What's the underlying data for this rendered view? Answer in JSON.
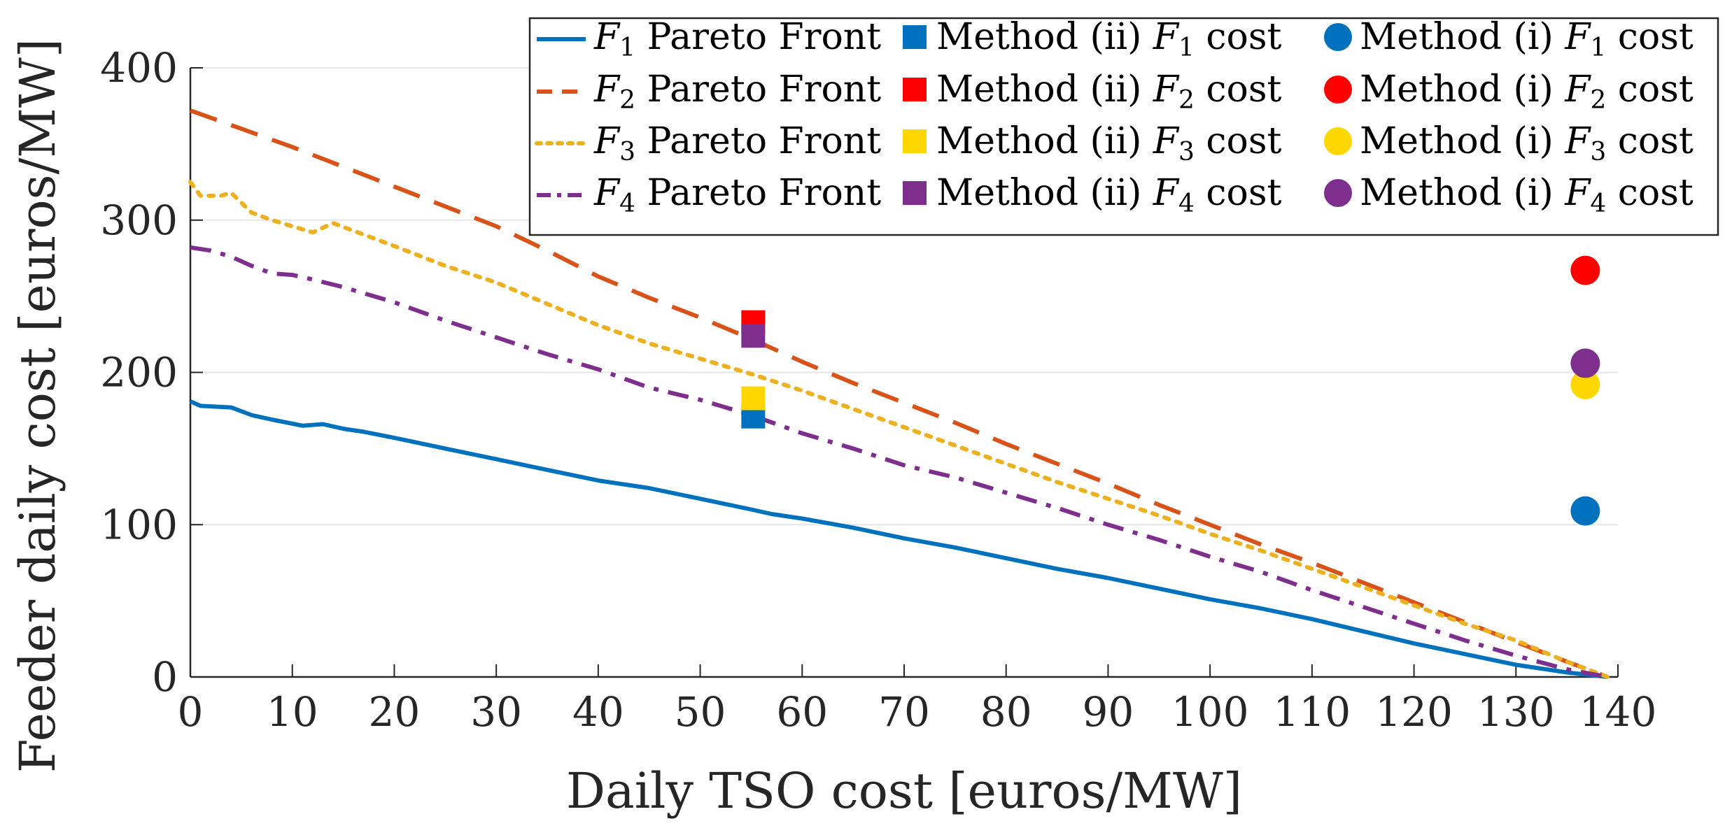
{
  "chart_data": {
    "type": "line",
    "title": "",
    "xlabel": "Daily TSO cost [euros/MW]",
    "ylabel": "Feeder daily cost [euros/MW]",
    "xlim": [
      0,
      140
    ],
    "ylim": [
      0,
      400
    ],
    "xticks": [
      0,
      10,
      20,
      30,
      40,
      50,
      60,
      70,
      80,
      90,
      100,
      110,
      120,
      130,
      140
    ],
    "yticks": [
      0,
      100,
      200,
      300,
      400
    ],
    "xtick_labels": [
      "0",
      "10",
      "20",
      "30",
      "40",
      "50",
      "60",
      "70",
      "80",
      "90",
      "100",
      "110",
      "120",
      "130",
      "140"
    ],
    "ytick_labels": [
      "0",
      "100",
      "200",
      "300",
      "400"
    ],
    "grid": true,
    "legend_position": "top-right",
    "series": [
      {
        "name": "F1 Pareto Front",
        "label_var": "F",
        "label_sub": "1",
        "label_rest": " Pareto Front",
        "style": "solid",
        "color": "#0072BD",
        "x": [
          0,
          1,
          4,
          6,
          8,
          11,
          13,
          15,
          17,
          20,
          25,
          30,
          35,
          40,
          45,
          50,
          55,
          57,
          60,
          65,
          70,
          75,
          80,
          85,
          90,
          95,
          100,
          105,
          110,
          115,
          120,
          125,
          130,
          135,
          139
        ],
        "y": [
          181,
          178,
          177,
          172,
          169,
          165,
          166,
          163,
          161,
          157,
          150,
          143,
          136,
          129,
          124,
          117,
          110,
          107,
          104,
          98,
          91,
          85,
          78,
          71,
          65,
          58,
          51,
          45,
          38,
          30,
          22,
          15,
          8,
          3,
          0
        ]
      },
      {
        "name": "F2 Pareto Front",
        "label_var": "F",
        "label_sub": "2",
        "label_rest": " Pareto Front",
        "style": "dashed",
        "color": "#D95319",
        "x": [
          0,
          5,
          10,
          15,
          20,
          25,
          30,
          35,
          40,
          45,
          50,
          55,
          60,
          65,
          70,
          75,
          80,
          85,
          90,
          95,
          100,
          105,
          110,
          115,
          120,
          125,
          130,
          135,
          139
        ],
        "y": [
          372,
          360,
          348,
          335,
          322,
          309,
          296,
          280,
          263,
          249,
          236,
          222,
          207,
          193,
          180,
          167,
          153,
          140,
          127,
          113,
          100,
          87,
          75,
          62,
          49,
          36,
          23,
          10,
          0
        ]
      },
      {
        "name": "F3 Pareto Front",
        "label_var": "F",
        "label_sub": "3",
        "label_rest": " Pareto Front",
        "style": "dotted",
        "color": "#EDB120",
        "x": [
          0,
          1,
          3,
          4,
          6,
          8,
          10,
          12,
          14,
          16,
          20,
          25,
          30,
          35,
          40,
          45,
          50,
          55,
          60,
          65,
          70,
          75,
          80,
          85,
          90,
          95,
          100,
          105,
          110,
          115,
          120,
          125,
          130,
          135,
          139
        ],
        "y": [
          325,
          316,
          316,
          318,
          305,
          300,
          296,
          292,
          298,
          293,
          283,
          270,
          259,
          245,
          231,
          219,
          209,
          199,
          188,
          176,
          164,
          152,
          140,
          128,
          117,
          106,
          94,
          83,
          71,
          59,
          47,
          35,
          24,
          10,
          0
        ]
      },
      {
        "name": "F4 Pareto Front",
        "label_var": "F",
        "label_sub": "4",
        "label_rest": " Pareto Front",
        "style": "dashdot",
        "color": "#7E2F8E",
        "x": [
          0,
          2,
          4,
          6,
          8,
          10,
          12,
          15,
          20,
          25,
          30,
          35,
          40,
          45,
          50,
          55,
          60,
          65,
          70,
          75,
          80,
          85,
          90,
          95,
          100,
          105,
          110,
          115,
          120,
          125,
          130,
          135,
          139
        ],
        "y": [
          282,
          280,
          276,
          270,
          265,
          264,
          261,
          256,
          246,
          234,
          223,
          212,
          202,
          190,
          182,
          172,
          160,
          150,
          139,
          131,
          121,
          111,
          100,
          90,
          79,
          69,
          57,
          46,
          35,
          24,
          14,
          5,
          0
        ]
      }
    ],
    "markers": [
      {
        "name": "Method (ii) F1 cost",
        "label_pre": "Method (ii) ",
        "label_var": "F",
        "label_sub": "1",
        "label_rest": " cost",
        "shape": "square",
        "color": "#0072BD",
        "x": 55.2,
        "y": 171
      },
      {
        "name": "Method (ii) F2 cost",
        "label_pre": "Method (ii) ",
        "label_var": "F",
        "label_sub": "2",
        "label_rest": " cost",
        "shape": "square",
        "color": "#FF0000",
        "x": 55.2,
        "y": 233
      },
      {
        "name": "Method (ii) F3 cost",
        "label_pre": "Method (ii) ",
        "label_var": "F",
        "label_sub": "3",
        "label_rest": " cost",
        "shape": "square",
        "color": "#FFD700",
        "x": 55.2,
        "y": 183
      },
      {
        "name": "Method (ii) F4 cost",
        "label_pre": "Method (ii) ",
        "label_var": "F",
        "label_sub": "4",
        "label_rest": " cost",
        "shape": "square",
        "color": "#7E2F8E",
        "x": 55.2,
        "y": 224
      },
      {
        "name": "Method (i) F1 cost",
        "label_pre": "Method (i) ",
        "label_var": "F",
        "label_sub": "1",
        "label_rest": " cost",
        "shape": "circle",
        "color": "#0072BD",
        "x": 136.8,
        "y": 109
      },
      {
        "name": "Method (i) F2 cost",
        "label_pre": "Method (i) ",
        "label_var": "F",
        "label_sub": "2",
        "label_rest": " cost",
        "shape": "circle",
        "color": "#FF0000",
        "x": 136.8,
        "y": 267
      },
      {
        "name": "Method (i) F3 cost",
        "label_pre": "Method (i) ",
        "label_var": "F",
        "label_sub": "3",
        "label_rest": " cost",
        "shape": "circle",
        "color": "#FFD700",
        "x": 136.8,
        "y": 192
      },
      {
        "name": "Method (i) F4 cost",
        "label_pre": "Method (i) ",
        "label_var": "F",
        "label_sub": "4",
        "label_rest": " cost",
        "shape": "circle",
        "color": "#7E2F8E",
        "x": 136.8,
        "y": 206
      }
    ]
  }
}
